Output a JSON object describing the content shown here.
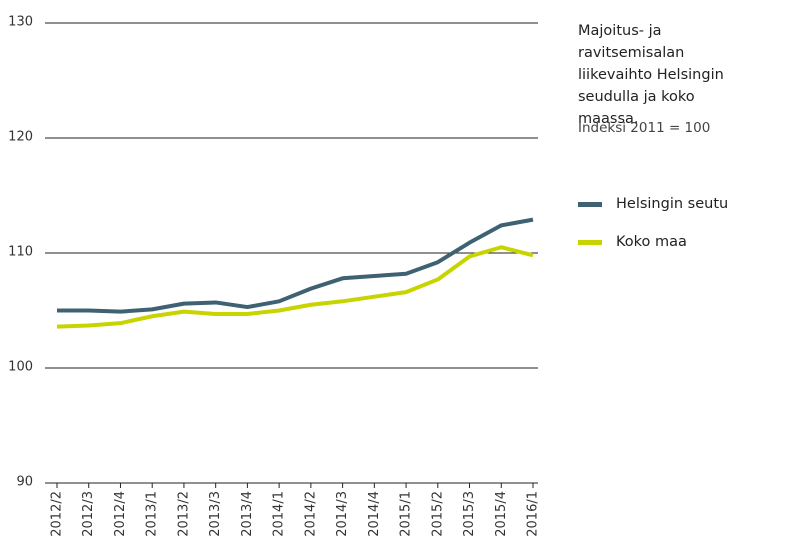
{
  "chart_data": {
    "type": "line",
    "title": "Majoitus- ja ravitsemisalan liikevaihto Helsingin seudulla ja koko maassa.",
    "subtitle": "Indeksi 2011 = 100",
    "categories": [
      "2012/2",
      "2012/3",
      "2012/4",
      "2013/1",
      "2013/2",
      "2013/3",
      "2013/4",
      "2014/1",
      "2014/2",
      "2014/3",
      "2014/4",
      "2015/1",
      "2015/2",
      "2015/3",
      "2015/4",
      "2016/1"
    ],
    "series": [
      {
        "name": "Helsingin seutu",
        "color": "#3e6272",
        "values": [
          105.0,
          105.0,
          104.9,
          105.1,
          105.6,
          105.7,
          105.3,
          105.8,
          106.9,
          107.8,
          108.0,
          108.2,
          109.2,
          110.9,
          112.4,
          112.9
        ]
      },
      {
        "name": "Koko maa",
        "color": "#c8d400",
        "values": [
          103.6,
          103.7,
          103.9,
          104.5,
          104.9,
          104.7,
          104.7,
          105.0,
          105.5,
          105.8,
          106.2,
          106.6,
          107.7,
          109.7,
          110.5,
          109.8
        ]
      }
    ],
    "ylim": [
      90,
      130
    ],
    "yticks": [
      90,
      100,
      110,
      120,
      130
    ],
    "grid": true
  }
}
